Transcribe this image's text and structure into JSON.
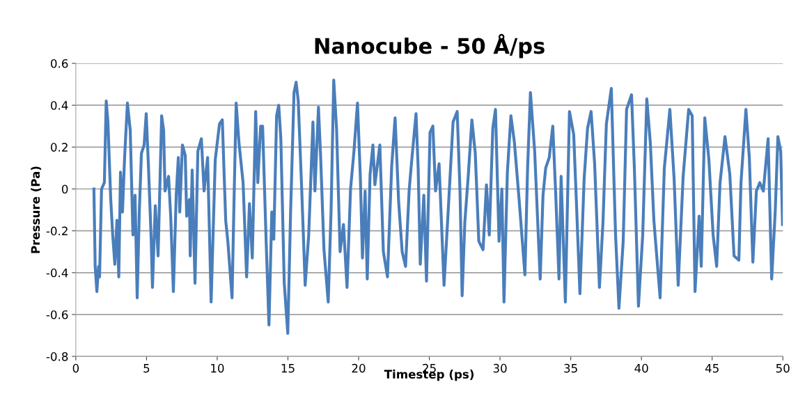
{
  "chart_data": {
    "type": "line",
    "title": "Nanocube - 50 Å/ps",
    "xlabel": "Timestep (ps)",
    "ylabel": "Pressure (Pa)",
    "xlim": [
      0,
      50
    ],
    "xticks": [
      0,
      5,
      10,
      15,
      20,
      25,
      30,
      35,
      40,
      45,
      50
    ],
    "ylim": [
      -0.8,
      0.6
    ],
    "yticks": [
      -0.8,
      -0.6,
      -0.4,
      -0.2,
      0,
      0.2,
      0.4,
      0.6
    ],
    "grid": "y",
    "marker": "none",
    "line_style": "solid",
    "series": [
      {
        "color": "#4a7ebb",
        "x": [
          1.28,
          1.37,
          1.49,
          1.61,
          1.68,
          1.82,
          2.02,
          2.15,
          2.27,
          2.47,
          2.61,
          2.76,
          2.91,
          3.04,
          3.16,
          3.3,
          3.45,
          3.65,
          3.85,
          4.04,
          4.19,
          4.34,
          4.49,
          4.64,
          4.83,
          4.98,
          5.13,
          5.33,
          5.42,
          5.62,
          5.82,
          6.07,
          6.21,
          6.31,
          6.56,
          6.71,
          6.9,
          7.1,
          7.25,
          7.35,
          7.54,
          7.74,
          7.84,
          8.04,
          8.09,
          8.23,
          8.43,
          8.63,
          8.88,
          9.07,
          9.32,
          9.57,
          9.86,
          10.16,
          10.36,
          10.6,
          10.75,
          11.05,
          11.19,
          11.34,
          11.54,
          11.83,
          12.08,
          12.28,
          12.48,
          12.72,
          12.87,
          13.07,
          13.21,
          13.46,
          13.66,
          13.86,
          14.0,
          14.2,
          14.35,
          14.5,
          14.74,
          14.99,
          15.19,
          15.43,
          15.58,
          15.73,
          15.98,
          16.22,
          16.47,
          16.77,
          16.91,
          17.16,
          17.31,
          17.55,
          17.85,
          18.05,
          18.24,
          18.44,
          18.69,
          18.93,
          19.18,
          19.43,
          19.67,
          19.92,
          20.12,
          20.27,
          20.46,
          20.61,
          20.81,
          21.01,
          21.15,
          21.5,
          21.75,
          22.04,
          22.34,
          22.58,
          22.83,
          23.08,
          23.32,
          23.57,
          23.72,
          24.06,
          24.21,
          24.36,
          24.61,
          24.8,
          25.05,
          25.25,
          25.44,
          25.69,
          26.04,
          26.33,
          26.68,
          26.97,
          27.17,
          27.32,
          27.51,
          27.76,
          28.01,
          28.25,
          28.5,
          28.8,
          29.04,
          29.24,
          29.49,
          29.68,
          29.93,
          30.13,
          30.28,
          30.52,
          30.77,
          31.02,
          31.36,
          31.76,
          31.95,
          32.15,
          32.45,
          32.84,
          33.04,
          33.23,
          33.48,
          33.73,
          33.93,
          34.17,
          34.32,
          34.62,
          34.91,
          35.21,
          35.4,
          35.65,
          35.95,
          36.19,
          36.44,
          36.69,
          37.03,
          37.28,
          37.52,
          37.87,
          38.17,
          38.41,
          38.71,
          38.95,
          39.3,
          39.5,
          39.79,
          40.09,
          40.38,
          40.63,
          40.88,
          41.32,
          41.62,
          42.01,
          42.31,
          42.6,
          42.95,
          43.34,
          43.59,
          43.79,
          44.08,
          44.23,
          44.48,
          44.77,
          45.07,
          45.32,
          45.56,
          45.91,
          46.25,
          46.55,
          46.89,
          47.04,
          47.39,
          47.63,
          47.88,
          48.13,
          48.37,
          48.62,
          48.96,
          49.21,
          49.46,
          49.65,
          49.85,
          49.98
        ],
        "values": [
          0.0,
          -0.37,
          -0.49,
          -0.37,
          -0.42,
          0.0,
          0.03,
          0.42,
          0.32,
          -0.05,
          -0.22,
          -0.36,
          -0.15,
          -0.42,
          0.08,
          -0.11,
          0.15,
          0.41,
          0.28,
          -0.22,
          -0.03,
          -0.52,
          -0.11,
          0.17,
          0.21,
          0.36,
          0.12,
          -0.24,
          -0.47,
          -0.08,
          -0.32,
          0.35,
          0.28,
          -0.01,
          0.06,
          -0.13,
          -0.49,
          -0.03,
          0.15,
          -0.11,
          0.21,
          0.16,
          -0.13,
          -0.05,
          -0.32,
          0.09,
          -0.45,
          0.18,
          0.24,
          -0.01,
          0.15,
          -0.54,
          0.14,
          0.31,
          0.33,
          -0.15,
          -0.25,
          -0.52,
          -0.05,
          0.41,
          0.22,
          0.03,
          -0.42,
          -0.07,
          -0.33,
          0.37,
          0.03,
          0.3,
          0.3,
          -0.25,
          -0.65,
          -0.11,
          -0.24,
          0.35,
          0.4,
          0.24,
          -0.45,
          -0.69,
          -0.11,
          0.46,
          0.51,
          0.42,
          -0.01,
          -0.46,
          -0.22,
          0.32,
          -0.01,
          0.39,
          0.16,
          -0.29,
          -0.54,
          -0.11,
          0.52,
          0.29,
          -0.3,
          -0.17,
          -0.47,
          0.0,
          0.18,
          0.41,
          0.06,
          -0.33,
          -0.01,
          -0.43,
          0.07,
          0.21,
          0.02,
          0.21,
          -0.3,
          -0.42,
          0.11,
          0.34,
          -0.06,
          -0.3,
          -0.37,
          -0.01,
          0.11,
          0.36,
          0.1,
          -0.36,
          -0.03,
          -0.44,
          0.27,
          0.3,
          -0.01,
          0.12,
          -0.46,
          -0.11,
          0.32,
          0.37,
          -0.01,
          -0.51,
          -0.16,
          0.07,
          0.33,
          0.17,
          -0.25,
          -0.29,
          0.02,
          -0.22,
          0.29,
          0.38,
          -0.25,
          0.0,
          -0.54,
          0.08,
          0.35,
          0.22,
          -0.06,
          -0.41,
          0.1,
          0.46,
          0.18,
          -0.43,
          -0.03,
          0.1,
          0.15,
          0.3,
          -0.01,
          -0.43,
          0.06,
          -0.54,
          0.37,
          0.26,
          -0.06,
          -0.5,
          0.05,
          0.29,
          0.37,
          0.12,
          -0.47,
          -0.16,
          0.31,
          0.48,
          -0.22,
          -0.57,
          -0.25,
          0.38,
          0.45,
          0.1,
          -0.56,
          -0.22,
          0.43,
          0.22,
          -0.15,
          -0.52,
          0.1,
          0.38,
          0.05,
          -0.46,
          0.06,
          0.38,
          0.35,
          -0.49,
          -0.13,
          -0.37,
          0.34,
          0.14,
          -0.22,
          -0.37,
          0.03,
          0.25,
          0.07,
          -0.32,
          -0.34,
          0.03,
          0.38,
          0.15,
          -0.35,
          -0.01,
          0.03,
          -0.01,
          0.24,
          -0.43,
          -0.11,
          0.25,
          0.18,
          -0.17
        ]
      }
    ]
  }
}
